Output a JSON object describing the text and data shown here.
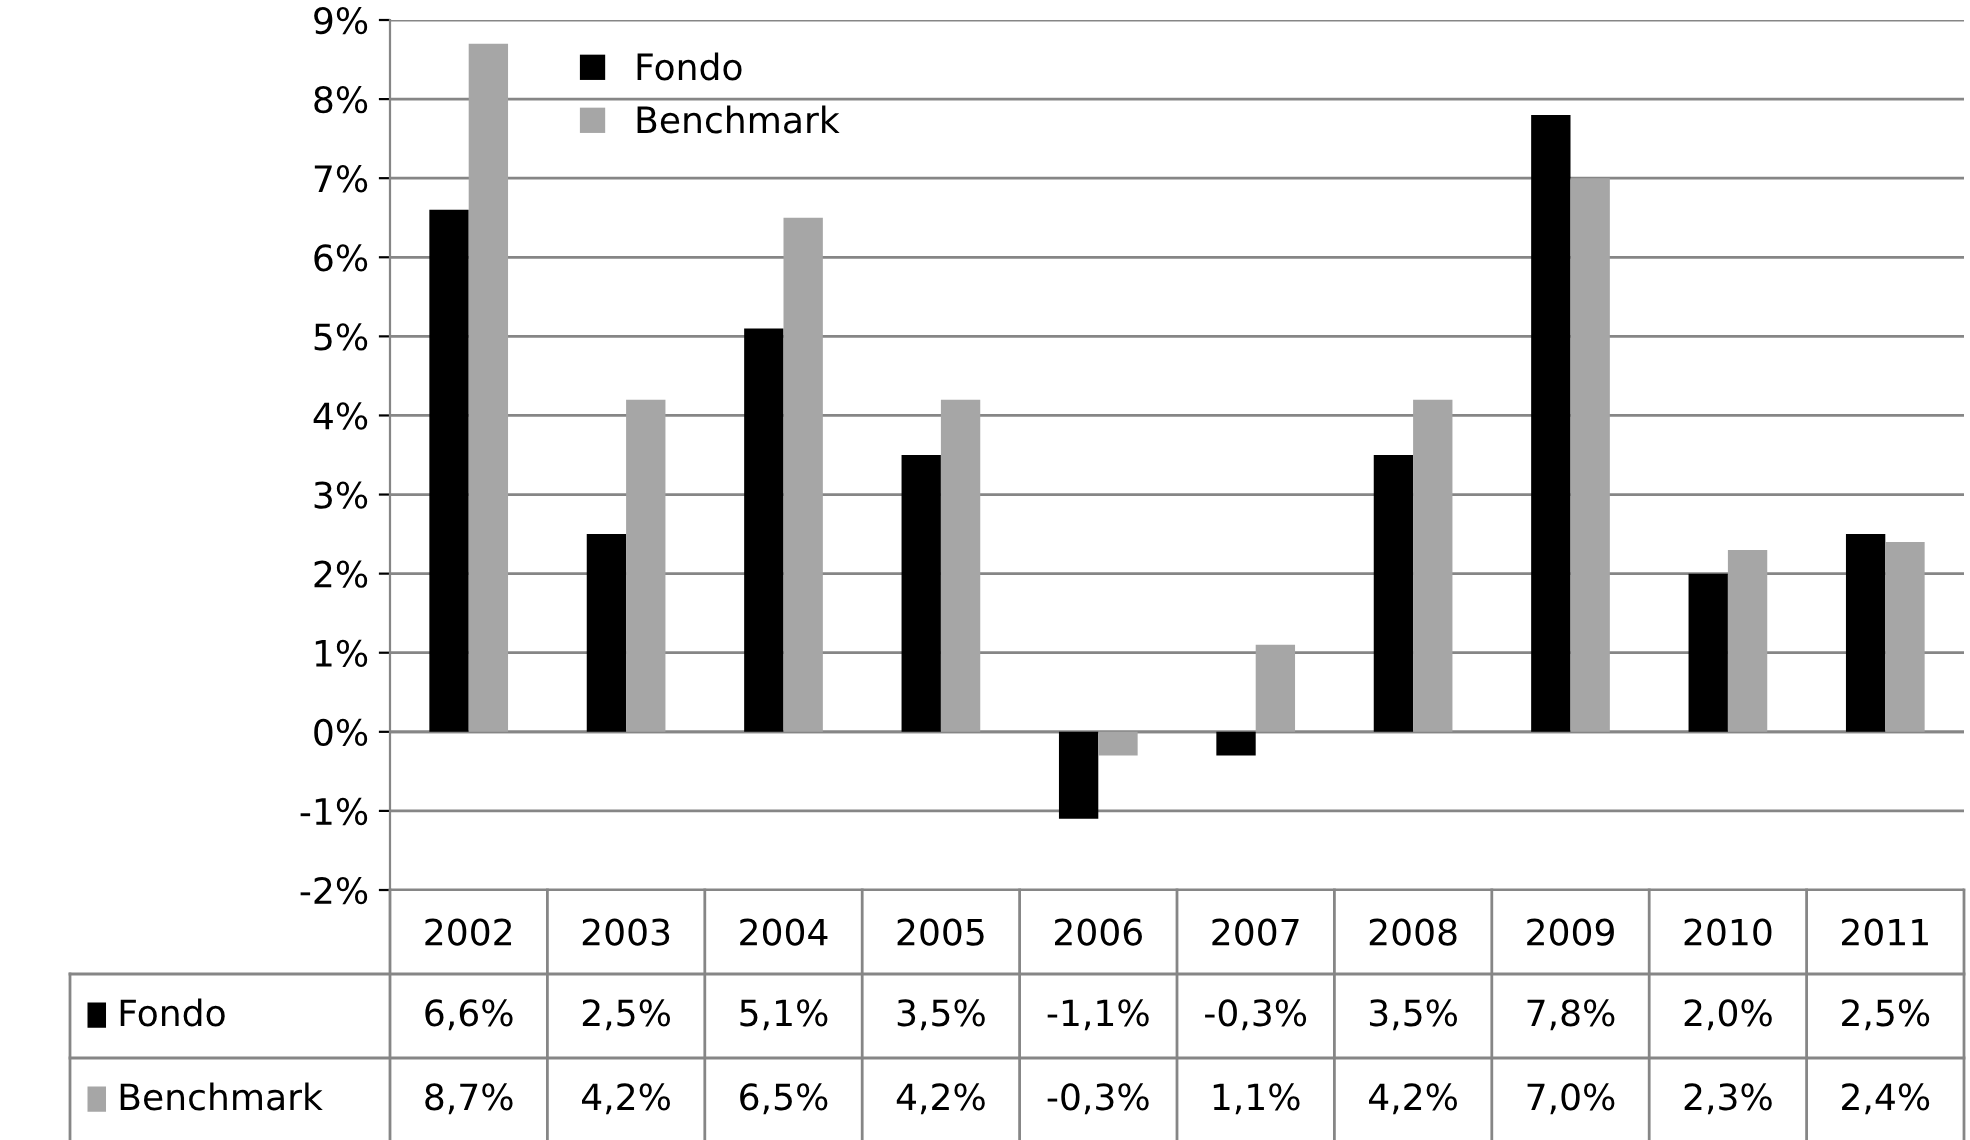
{
  "chart_data": {
    "type": "bar",
    "categories": [
      "2002",
      "2003",
      "2004",
      "2005",
      "2006",
      "2007",
      "2008",
      "2009",
      "2010",
      "2011"
    ],
    "series": [
      {
        "name": "Fondo",
        "color": "#000000",
        "values": [
          6.6,
          2.5,
          5.1,
          3.5,
          -1.1,
          -0.3,
          3.5,
          7.8,
          2.0,
          2.5
        ],
        "value_labels": [
          "6,6%",
          "2,5%",
          "5,1%",
          "3,5%",
          "-1,1%",
          "-0,3%",
          "3,5%",
          "7,8%",
          "2,0%",
          "2,5%"
        ]
      },
      {
        "name": "Benchmark",
        "color": "#a6a6a6",
        "values": [
          8.7,
          4.2,
          6.5,
          4.2,
          -0.3,
          1.1,
          4.2,
          7.0,
          2.3,
          2.4
        ],
        "value_labels": [
          "8,7%",
          "4,2%",
          "6,5%",
          "4,2%",
          "-0,3%",
          "1,1%",
          "4,2%",
          "7,0%",
          "2,3%",
          "2,4%"
        ]
      }
    ],
    "ylim": [
      -2,
      9
    ],
    "yticks": [
      {
        "value": -2,
        "label": "-2%"
      },
      {
        "value": -1,
        "label": "-1%"
      },
      {
        "value": 0,
        "label": "0%"
      },
      {
        "value": 1,
        "label": "1%"
      },
      {
        "value": 2,
        "label": "2%"
      },
      {
        "value": 3,
        "label": "3%"
      },
      {
        "value": 4,
        "label": "4%"
      },
      {
        "value": 5,
        "label": "5%"
      },
      {
        "value": 6,
        "label": "6%"
      },
      {
        "value": 7,
        "label": "7%"
      },
      {
        "value": 8,
        "label": "8%"
      },
      {
        "value": 9,
        "label": "9%"
      }
    ],
    "grid": "y",
    "legend": "top left"
  }
}
